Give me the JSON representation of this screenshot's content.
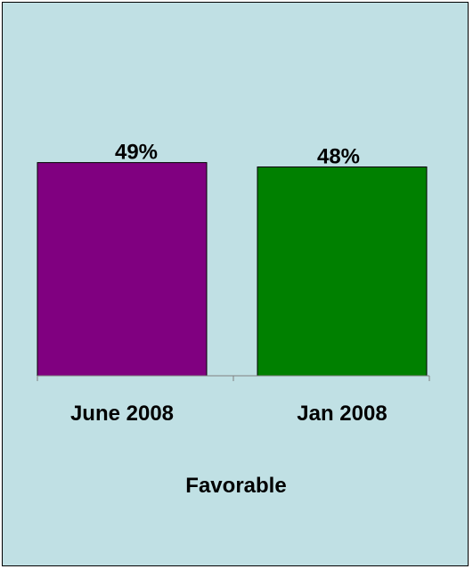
{
  "colors": {
    "background": "#c0e0e4",
    "border": "#000000",
    "axis": "#808080"
  },
  "chart_data": {
    "type": "bar",
    "title": "",
    "xlabel": "Favorable",
    "ylabel": "",
    "ylim": [
      0,
      70
    ],
    "grid": false,
    "categories": [
      "June 2008",
      "Jan 2008"
    ],
    "values": [
      49,
      48
    ],
    "data_labels": [
      "49%",
      "48%"
    ],
    "bar_colors": [
      "#800080",
      "#008000"
    ]
  }
}
